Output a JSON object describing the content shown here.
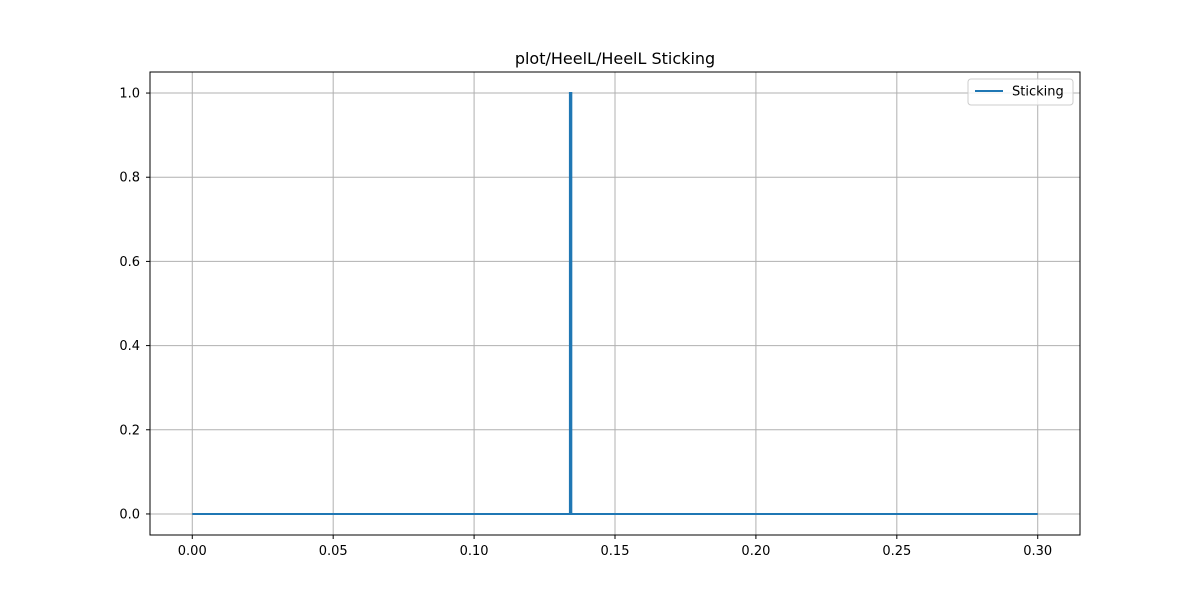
{
  "chart_data": {
    "type": "line",
    "title": "plot/HeelL/HeelL Sticking",
    "xlabel": "",
    "ylabel": "",
    "xlim": [
      -0.015,
      0.315
    ],
    "ylim": [
      -0.05,
      1.05
    ],
    "xticks": [
      0.0,
      0.05,
      0.1,
      0.15,
      0.2,
      0.25,
      0.3
    ],
    "xtick_labels": [
      "0.00",
      "0.05",
      "0.10",
      "0.15",
      "0.20",
      "0.25",
      "0.30"
    ],
    "yticks": [
      0.0,
      0.2,
      0.4,
      0.6,
      0.8,
      1.0
    ],
    "ytick_labels": [
      "0.0",
      "0.2",
      "0.4",
      "0.6",
      "0.8",
      "1.0"
    ],
    "grid": true,
    "legend_position": "top-right",
    "series": [
      {
        "name": "Sticking",
        "color": "#1f77b4",
        "x": [
          0.0,
          0.134,
          0.134,
          0.1345,
          0.1345,
          0.3
        ],
        "y": [
          0.0,
          0.0,
          1.0,
          1.0,
          0.0,
          0.0
        ]
      }
    ]
  }
}
